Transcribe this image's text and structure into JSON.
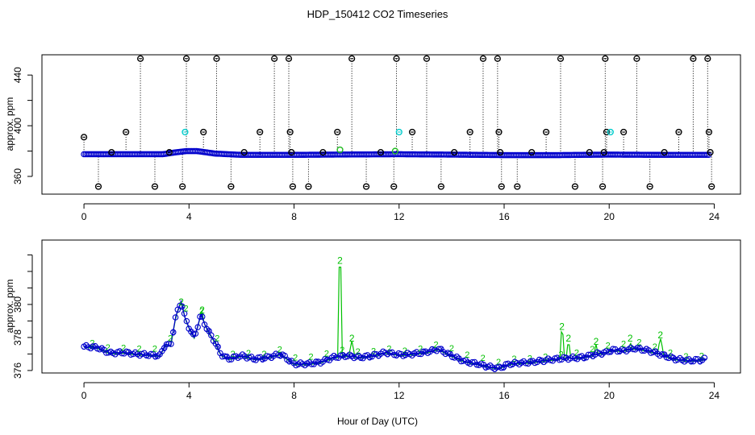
{
  "figure": {
    "title": "HDP_150412  CO2 Timeseries",
    "xlabel": "Hour of Day (UTC)"
  },
  "chart_data": [
    {
      "type": "scatter",
      "panel": "top",
      "ylabel": "approx. ppm",
      "xlim": [
        -1.6,
        25.0
      ],
      "ylim": [
        346,
        456
      ],
      "xticks": [
        0,
        4,
        8,
        12,
        16,
        20,
        24
      ],
      "yticks": [
        360,
        400,
        440
      ],
      "yminor": [
        380,
        420
      ],
      "baseline": [
        [
          0,
          377.5
        ],
        [
          1,
          377.5
        ],
        [
          2,
          377.5
        ],
        [
          3,
          377.5
        ],
        [
          3.5,
          379
        ],
        [
          3.9,
          380
        ],
        [
          4.3,
          380
        ],
        [
          5,
          378
        ],
        [
          6,
          377
        ],
        [
          8,
          377
        ],
        [
          10,
          377.3
        ],
        [
          12,
          377.5
        ],
        [
          14,
          377.2
        ],
        [
          16,
          376.8
        ],
        [
          18,
          376.8
        ],
        [
          20,
          377.2
        ],
        [
          22,
          377
        ],
        [
          23.8,
          377
        ]
      ],
      "outliers": [
        {
          "x": 0.0,
          "y": 391,
          "c": "black"
        },
        {
          "x": 0.55,
          "y": 352,
          "c": "black"
        },
        {
          "x": 1.05,
          "y": 379,
          "c": "black"
        },
        {
          "x": 1.6,
          "y": 395,
          "c": "black"
        },
        {
          "x": 2.15,
          "y": 453,
          "c": "black"
        },
        {
          "x": 2.7,
          "y": 352,
          "c": "black"
        },
        {
          "x": 3.25,
          "y": 379,
          "c": "black"
        },
        {
          "x": 3.75,
          "y": 352,
          "c": "black"
        },
        {
          "x": 3.9,
          "y": 453,
          "c": "black"
        },
        {
          "x": 3.85,
          "y": 395,
          "c": "cyan"
        },
        {
          "x": 4.55,
          "y": 395,
          "c": "black"
        },
        {
          "x": 5.05,
          "y": 453,
          "c": "black"
        },
        {
          "x": 5.6,
          "y": 352,
          "c": "black"
        },
        {
          "x": 6.1,
          "y": 379,
          "c": "black"
        },
        {
          "x": 6.7,
          "y": 395,
          "c": "black"
        },
        {
          "x": 7.25,
          "y": 453,
          "c": "black"
        },
        {
          "x": 7.8,
          "y": 453,
          "c": "black"
        },
        {
          "x": 7.85,
          "y": 395,
          "c": "black"
        },
        {
          "x": 7.9,
          "y": 379,
          "c": "black"
        },
        {
          "x": 7.95,
          "y": 352,
          "c": "black"
        },
        {
          "x": 8.55,
          "y": 352,
          "c": "black"
        },
        {
          "x": 9.1,
          "y": 379,
          "c": "black"
        },
        {
          "x": 9.65,
          "y": 395,
          "c": "black"
        },
        {
          "x": 10.2,
          "y": 453,
          "c": "black"
        },
        {
          "x": 10.75,
          "y": 352,
          "c": "black"
        },
        {
          "x": 11.3,
          "y": 379,
          "c": "black"
        },
        {
          "x": 11.8,
          "y": 352,
          "c": "black"
        },
        {
          "x": 11.9,
          "y": 453,
          "c": "black"
        },
        {
          "x": 12.0,
          "y": 395,
          "c": "cyan"
        },
        {
          "x": 12.5,
          "y": 395,
          "c": "black"
        },
        {
          "x": 13.05,
          "y": 453,
          "c": "black"
        },
        {
          "x": 13.6,
          "y": 352,
          "c": "black"
        },
        {
          "x": 14.1,
          "y": 379,
          "c": "black"
        },
        {
          "x": 14.7,
          "y": 395,
          "c": "black"
        },
        {
          "x": 15.2,
          "y": 453,
          "c": "black"
        },
        {
          "x": 15.75,
          "y": 453,
          "c": "black"
        },
        {
          "x": 15.8,
          "y": 395,
          "c": "black"
        },
        {
          "x": 15.85,
          "y": 379,
          "c": "black"
        },
        {
          "x": 15.9,
          "y": 352,
          "c": "black"
        },
        {
          "x": 16.5,
          "y": 352,
          "c": "black"
        },
        {
          "x": 17.05,
          "y": 379,
          "c": "black"
        },
        {
          "x": 17.6,
          "y": 395,
          "c": "black"
        },
        {
          "x": 18.15,
          "y": 453,
          "c": "black"
        },
        {
          "x": 18.7,
          "y": 352,
          "c": "black"
        },
        {
          "x": 19.25,
          "y": 379,
          "c": "black"
        },
        {
          "x": 19.75,
          "y": 352,
          "c": "black"
        },
        {
          "x": 19.8,
          "y": 379,
          "c": "black"
        },
        {
          "x": 19.85,
          "y": 453,
          "c": "black"
        },
        {
          "x": 19.9,
          "y": 395,
          "c": "black"
        },
        {
          "x": 20.05,
          "y": 395,
          "c": "cyan"
        },
        {
          "x": 20.55,
          "y": 395,
          "c": "black"
        },
        {
          "x": 21.05,
          "y": 453,
          "c": "black"
        },
        {
          "x": 21.55,
          "y": 352,
          "c": "black"
        },
        {
          "x": 22.1,
          "y": 379,
          "c": "black"
        },
        {
          "x": 22.65,
          "y": 395,
          "c": "black"
        },
        {
          "x": 23.2,
          "y": 453,
          "c": "black"
        },
        {
          "x": 23.75,
          "y": 453,
          "c": "black"
        },
        {
          "x": 23.8,
          "y": 395,
          "c": "black"
        },
        {
          "x": 23.85,
          "y": 379,
          "c": "black"
        },
        {
          "x": 23.9,
          "y": 352,
          "c": "black"
        },
        {
          "x": 9.75,
          "y": 381,
          "c": "green"
        },
        {
          "x": 11.85,
          "y": 380,
          "c": "green"
        }
      ]
    },
    {
      "type": "line",
      "panel": "bottom",
      "ylabel": "approx. ppm",
      "xlim": [
        -1.6,
        25.0
      ],
      "ylim": [
        375.85,
        383.9
      ],
      "xticks": [
        0,
        4,
        8,
        12,
        16,
        20,
        24
      ],
      "yticks": [
        376,
        378,
        380
      ],
      "ytick_labels": [
        "376",
        "378",
        "380"
      ],
      "yminor": [
        377,
        379,
        381,
        382,
        383
      ],
      "series": [
        {
          "name": "3",
          "color": "#0000cc",
          "points": [
            [
              0,
              377.45
            ],
            [
              0.5,
              377.4
            ],
            [
              1,
              377.05
            ],
            [
              1.5,
              377.1
            ],
            [
              2,
              377.0
            ],
            [
              2.5,
              376.95
            ],
            [
              2.9,
              376.9
            ],
            [
              3.1,
              377.6
            ],
            [
              3.3,
              377.5
            ],
            [
              3.5,
              379.3
            ],
            [
              3.7,
              380.2
            ],
            [
              3.85,
              379.2
            ],
            [
              4.0,
              378.6
            ],
            [
              4.2,
              378.0
            ],
            [
              4.3,
              378.5
            ],
            [
              4.45,
              379.4
            ],
            [
              4.6,
              378.8
            ],
            [
              4.8,
              378.2
            ],
            [
              5.0,
              377.7
            ],
            [
              5.2,
              377.0
            ],
            [
              5.5,
              376.7
            ],
            [
              6.0,
              376.9
            ],
            [
              6.5,
              376.7
            ],
            [
              7.0,
              376.8
            ],
            [
              7.5,
              377.0
            ],
            [
              8.0,
              376.4
            ],
            [
              8.5,
              376.4
            ],
            [
              9.0,
              376.5
            ],
            [
              9.5,
              376.8
            ],
            [
              10.0,
              376.9
            ],
            [
              10.5,
              376.8
            ],
            [
              11.0,
              376.9
            ],
            [
              11.5,
              377.1
            ],
            [
              11.8,
              377.0
            ],
            [
              12.1,
              376.95
            ],
            [
              12.5,
              377.0
            ],
            [
              13.0,
              377.1
            ],
            [
              13.5,
              377.3
            ],
            [
              14.0,
              376.9
            ],
            [
              14.5,
              376.55
            ],
            [
              15.0,
              376.4
            ],
            [
              15.5,
              376.2
            ],
            [
              15.8,
              376.15
            ],
            [
              16.2,
              376.4
            ],
            [
              16.5,
              376.45
            ],
            [
              17.0,
              376.5
            ],
            [
              17.5,
              376.6
            ],
            [
              18.0,
              376.7
            ],
            [
              18.5,
              376.75
            ],
            [
              19.0,
              376.8
            ],
            [
              19.5,
              377.0
            ],
            [
              19.9,
              377.1
            ],
            [
              20.1,
              377.25
            ],
            [
              20.5,
              377.2
            ],
            [
              21.0,
              377.35
            ],
            [
              21.5,
              377.2
            ],
            [
              22.0,
              376.95
            ],
            [
              22.5,
              376.7
            ],
            [
              23.0,
              376.6
            ],
            [
              23.5,
              376.65
            ],
            [
              23.7,
              376.7
            ]
          ]
        },
        {
          "name": "2",
          "color": "#00c000",
          "spikes": [
            {
              "x": 3.7,
              "y": 380.0
            },
            {
              "x": 4.5,
              "y": 379.5
            },
            {
              "x": 9.75,
              "y": 382.5
            },
            {
              "x": 10.2,
              "y": 377.8
            },
            {
              "x": 18.2,
              "y": 378.5
            },
            {
              "x": 18.45,
              "y": 377.8
            },
            {
              "x": 19.5,
              "y": 377.6
            },
            {
              "x": 20.8,
              "y": 377.8
            },
            {
              "x": 21.95,
              "y": 378.0
            }
          ]
        }
      ]
    }
  ]
}
